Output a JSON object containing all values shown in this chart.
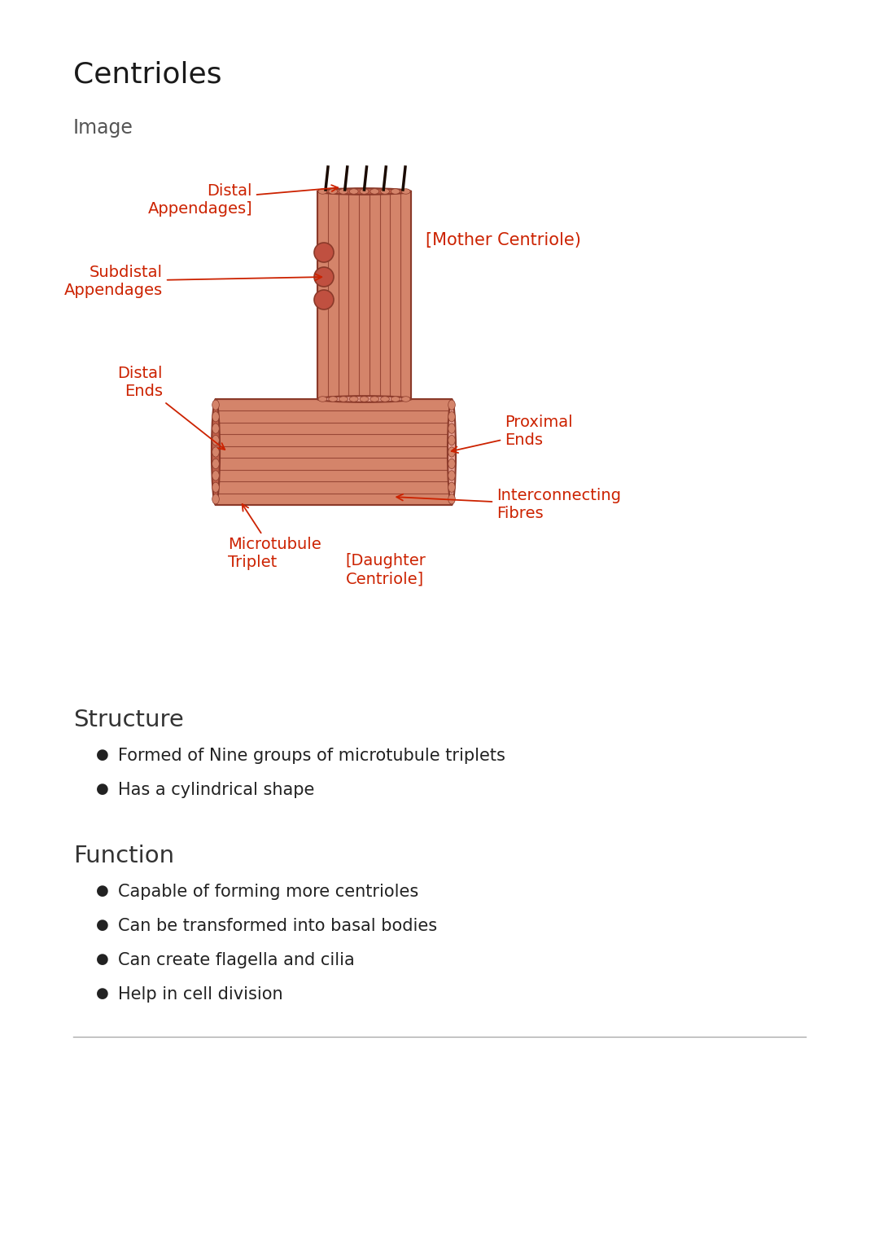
{
  "title": "Centrioles",
  "subtitle": "Image",
  "bg_color": "#ffffff",
  "title_color": "#1a1a1a",
  "title_fontsize": 26,
  "subtitle_fontsize": 17,
  "annotation_color": "#cc2200",
  "structure_title": "Structure",
  "structure_bullets": [
    "Formed of Nine groups of microtubule triplets",
    "Has a cylindrical shape"
  ],
  "function_title": "Function",
  "function_bullets": [
    "Capable of forming more centrioles",
    "Can be transformed into basal bodies",
    "Can create flagella and cilia",
    "Help in cell division"
  ],
  "section_title_color": "#333333",
  "section_title_fontsize": 21,
  "bullet_fontsize": 15,
  "bullet_color": "#222222",
  "divider_color": "#aaaaaa",
  "centriole_fill": "#d4846a",
  "centriole_dark": "#c0604a",
  "centriole_outline": "#8b3a2a",
  "centriole_light": "#e8a090"
}
